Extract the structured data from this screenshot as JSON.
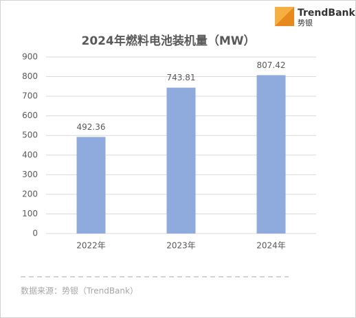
{
  "logo": {
    "name": "TrendBank",
    "sub": "势银"
  },
  "chart_data": {
    "type": "bar",
    "title": "2024年燃料电池装机量（MW）",
    "categories": [
      "2022年",
      "2023年",
      "2024年"
    ],
    "values": [
      492.36,
      743.81,
      807.42
    ],
    "color": "#8faadc",
    "ylim": [
      0,
      900
    ],
    "yticks": [
      0,
      100,
      200,
      300,
      400,
      500,
      600,
      700,
      800,
      900
    ],
    "grid": true,
    "source": "数据来源：势银（TrendBank）"
  }
}
